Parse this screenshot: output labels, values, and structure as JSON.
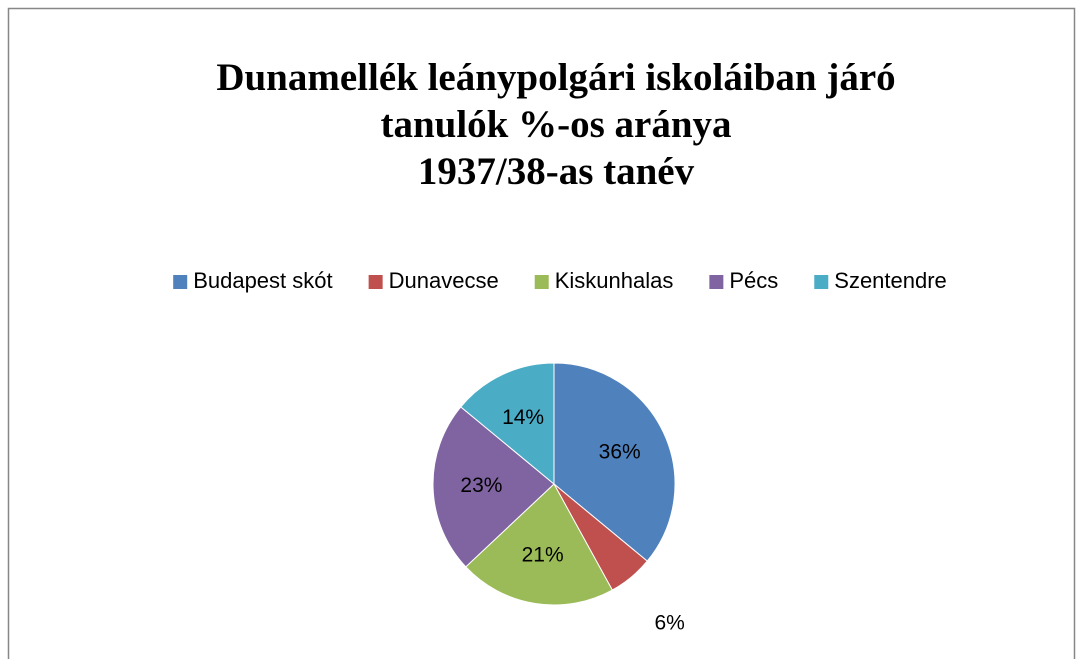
{
  "chart_data": {
    "type": "pie",
    "title": [
      "Dunamellék leánypolgári iskoláiban járó",
      "tanulók %-os aránya",
      "1937/38-as tanév"
    ],
    "categories": [
      "Budapest skót",
      "Dunavecse",
      "Kiskunhalas",
      "Pécs",
      "Szentendre"
    ],
    "values": [
      36,
      6,
      21,
      23,
      14
    ],
    "value_labels": [
      "36%",
      "6%",
      "21%",
      "23%",
      "14%"
    ],
    "colors": [
      "#4f81bd",
      "#c0504d",
      "#9bbb59",
      "#8064a2",
      "#4bacc6"
    ],
    "legend": "top"
  }
}
